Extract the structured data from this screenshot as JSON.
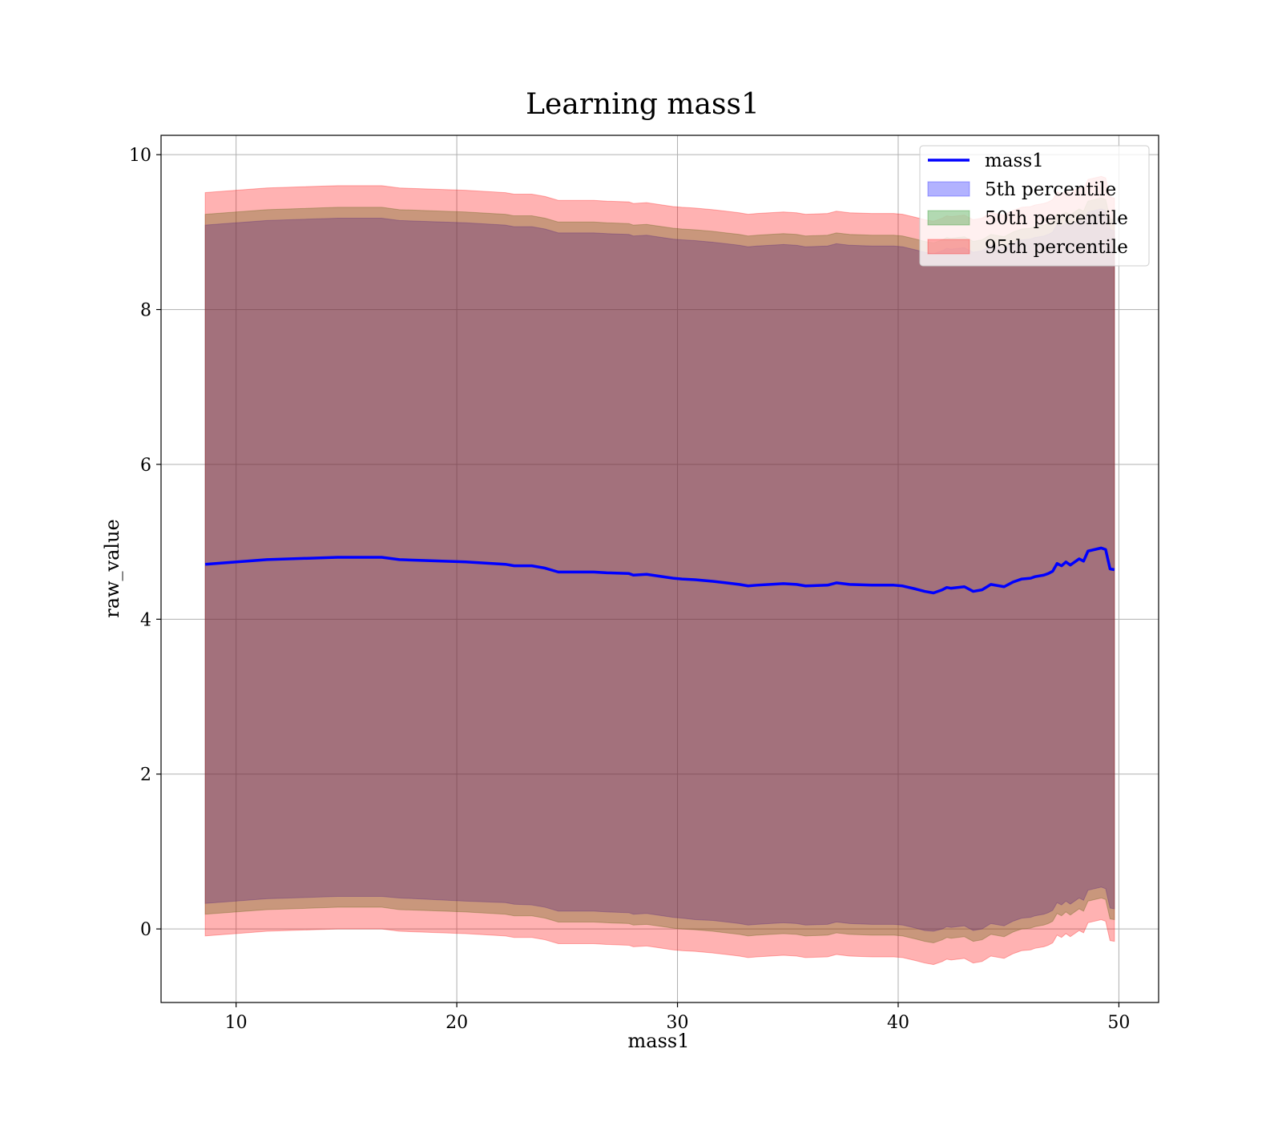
{
  "chart_data": {
    "type": "area",
    "title": "Learning mass1",
    "xlabel": "mass1",
    "ylabel": "raw_value",
    "xlim": [
      6.6,
      51.8
    ],
    "ylim": [
      -0.95,
      10.25
    ],
    "xticks": [
      10,
      20,
      30,
      40,
      50
    ],
    "yticks": [
      0,
      2,
      4,
      6,
      8,
      10
    ],
    "grid": true,
    "legend_position": "top-right",
    "x": [
      8.6,
      11.4,
      14.6,
      16.6,
      17.4,
      20.4,
      22.2,
      22.6,
      23.4,
      24.0,
      24.6,
      26.2,
      26.8,
      27.8,
      28.0,
      28.6,
      29.8,
      30.2,
      30.8,
      31.6,
      32.2,
      32.8,
      33.2,
      33.6,
      34.8,
      35.4,
      35.8,
      36.8,
      37.2,
      37.8,
      38.8,
      39.4,
      39.8,
      40.2,
      40.8,
      41.2,
      41.6,
      42.0,
      42.2,
      42.4,
      43.0,
      43.4,
      43.8,
      44.2,
      44.8,
      45.2,
      45.6,
      46.0,
      46.2,
      46.6,
      46.8,
      47.0,
      47.2,
      47.4,
      47.6,
      47.8,
      48.2,
      48.4,
      48.6,
      49.2,
      49.4,
      49.6,
      49.8
    ],
    "series": [
      {
        "name": "mass1",
        "color": "#0000ff",
        "values": [
          4.71,
          4.77,
          4.8,
          4.8,
          4.77,
          4.74,
          4.71,
          4.69,
          4.69,
          4.66,
          4.61,
          4.61,
          4.6,
          4.59,
          4.57,
          4.58,
          4.53,
          4.52,
          4.51,
          4.49,
          4.47,
          4.45,
          4.43,
          4.44,
          4.46,
          4.45,
          4.43,
          4.44,
          4.47,
          4.45,
          4.44,
          4.44,
          4.44,
          4.43,
          4.39,
          4.36,
          4.34,
          4.38,
          4.41,
          4.4,
          4.42,
          4.36,
          4.38,
          4.45,
          4.42,
          4.48,
          4.52,
          4.53,
          4.55,
          4.57,
          4.59,
          4.62,
          4.72,
          4.69,
          4.74,
          4.7,
          4.78,
          4.75,
          4.88,
          4.92,
          4.9,
          4.65,
          4.64
        ]
      }
    ],
    "bands": [
      {
        "name": "5th percentile",
        "color": "#0000ff",
        "opacity": 0.3,
        "lower": [
          0.33,
          0.39,
          0.42,
          0.42,
          0.4,
          0.36,
          0.34,
          0.32,
          0.31,
          0.28,
          0.23,
          0.23,
          0.22,
          0.21,
          0.19,
          0.2,
          0.15,
          0.14,
          0.12,
          0.11,
          0.09,
          0.07,
          0.05,
          0.06,
          0.08,
          0.07,
          0.05,
          0.06,
          0.09,
          0.07,
          0.06,
          0.06,
          0.06,
          0.05,
          0.01,
          -0.02,
          -0.03,
          0.0,
          0.03,
          0.02,
          0.04,
          -0.02,
          0.0,
          0.07,
          0.04,
          0.1,
          0.14,
          0.15,
          0.17,
          0.19,
          0.21,
          0.24,
          0.34,
          0.31,
          0.36,
          0.32,
          0.4,
          0.37,
          0.5,
          0.54,
          0.52,
          0.27,
          0.26
        ],
        "upper": [
          9.09,
          9.15,
          9.18,
          9.18,
          9.15,
          9.12,
          9.09,
          9.07,
          9.07,
          9.04,
          8.99,
          8.99,
          8.98,
          8.97,
          8.95,
          8.96,
          8.91,
          8.9,
          8.89,
          8.87,
          8.85,
          8.83,
          8.81,
          8.82,
          8.84,
          8.83,
          8.81,
          8.82,
          8.85,
          8.83,
          8.82,
          8.82,
          8.82,
          8.81,
          8.77,
          8.74,
          8.72,
          8.76,
          8.79,
          8.78,
          8.8,
          8.74,
          8.76,
          8.83,
          8.8,
          8.86,
          8.9,
          8.91,
          8.93,
          8.95,
          8.97,
          9.0,
          9.1,
          9.07,
          9.12,
          9.08,
          9.16,
          9.13,
          9.26,
          9.3,
          9.28,
          9.03,
          9.02
        ]
      },
      {
        "name": "50th percentile",
        "color": "#008000",
        "opacity": 0.3,
        "lower": [
          0.19,
          0.25,
          0.28,
          0.28,
          0.25,
          0.22,
          0.19,
          0.17,
          0.17,
          0.14,
          0.09,
          0.09,
          0.08,
          0.07,
          0.05,
          0.06,
          0.01,
          0.0,
          -0.01,
          -0.03,
          -0.05,
          -0.07,
          -0.09,
          -0.08,
          -0.06,
          -0.07,
          -0.09,
          -0.08,
          -0.05,
          -0.07,
          -0.08,
          -0.08,
          -0.08,
          -0.09,
          -0.13,
          -0.16,
          -0.18,
          -0.14,
          -0.11,
          -0.12,
          -0.1,
          -0.16,
          -0.14,
          -0.07,
          -0.1,
          -0.04,
          0.0,
          0.01,
          0.03,
          0.05,
          0.07,
          0.1,
          0.2,
          0.17,
          0.22,
          0.18,
          0.26,
          0.23,
          0.36,
          0.4,
          0.38,
          0.13,
          0.12
        ],
        "upper": [
          9.23,
          9.29,
          9.32,
          9.32,
          9.29,
          9.26,
          9.23,
          9.21,
          9.21,
          9.18,
          9.13,
          9.13,
          9.12,
          9.11,
          9.09,
          9.1,
          9.05,
          9.04,
          9.03,
          9.01,
          8.99,
          8.97,
          8.95,
          8.96,
          8.98,
          8.97,
          8.95,
          8.96,
          8.99,
          8.97,
          8.96,
          8.96,
          8.96,
          8.95,
          8.91,
          8.88,
          8.86,
          8.9,
          8.93,
          8.92,
          8.94,
          8.88,
          8.9,
          8.97,
          8.94,
          9.0,
          9.04,
          9.05,
          9.07,
          9.09,
          9.11,
          9.14,
          9.24,
          9.21,
          9.26,
          9.22,
          9.3,
          9.27,
          9.4,
          9.44,
          9.42,
          9.17,
          9.16
        ]
      },
      {
        "name": "95th percentile",
        "color": "#ff0000",
        "opacity": 0.3,
        "lower": [
          -0.09,
          -0.03,
          0.0,
          0.0,
          -0.03,
          -0.06,
          -0.09,
          -0.11,
          -0.11,
          -0.14,
          -0.19,
          -0.19,
          -0.2,
          -0.21,
          -0.23,
          -0.22,
          -0.27,
          -0.28,
          -0.29,
          -0.31,
          -0.33,
          -0.35,
          -0.37,
          -0.36,
          -0.34,
          -0.35,
          -0.37,
          -0.36,
          -0.33,
          -0.35,
          -0.36,
          -0.36,
          -0.36,
          -0.37,
          -0.41,
          -0.44,
          -0.46,
          -0.42,
          -0.39,
          -0.4,
          -0.38,
          -0.44,
          -0.42,
          -0.35,
          -0.38,
          -0.32,
          -0.28,
          -0.27,
          -0.25,
          -0.23,
          -0.21,
          -0.18,
          -0.08,
          -0.11,
          -0.06,
          -0.1,
          -0.02,
          -0.05,
          0.08,
          0.12,
          0.1,
          -0.15,
          -0.16
        ],
        "upper": [
          9.51,
          9.57,
          9.6,
          9.6,
          9.57,
          9.54,
          9.51,
          9.49,
          9.49,
          9.46,
          9.41,
          9.41,
          9.4,
          9.39,
          9.37,
          9.38,
          9.33,
          9.32,
          9.31,
          9.29,
          9.27,
          9.25,
          9.23,
          9.24,
          9.26,
          9.25,
          9.23,
          9.24,
          9.27,
          9.25,
          9.24,
          9.24,
          9.24,
          9.23,
          9.19,
          9.16,
          9.14,
          9.18,
          9.21,
          9.2,
          9.22,
          9.16,
          9.18,
          9.25,
          9.22,
          9.28,
          9.32,
          9.33,
          9.35,
          9.37,
          9.39,
          9.42,
          9.52,
          9.49,
          9.54,
          9.5,
          9.58,
          9.55,
          9.68,
          9.72,
          9.7,
          9.45,
          9.44
        ]
      }
    ]
  }
}
